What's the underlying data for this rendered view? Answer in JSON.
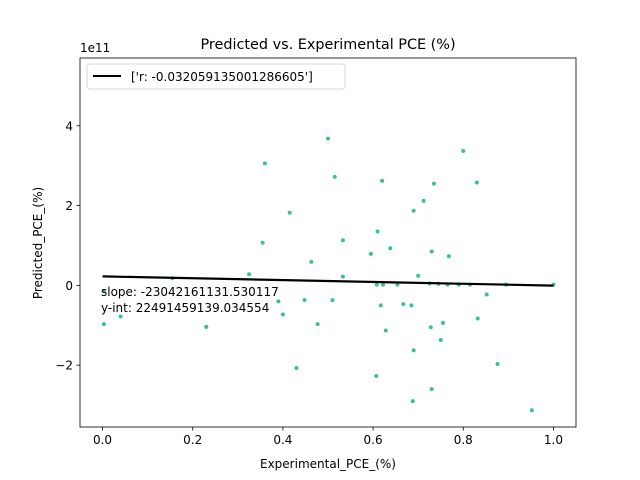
{
  "chart_data": {
    "type": "scatter",
    "title": "Predicted vs. Experimental PCE (%)",
    "xlabel": "Experimental_PCE_(%)",
    "ylabel": "Predicted_PCE_(%)",
    "y_offset_label": "1e11",
    "xlim": [
      -0.05,
      1.05
    ],
    "ylim": [
      -3.55,
      5.7
    ],
    "x_ticks": [
      0.0,
      0.2,
      0.4,
      0.6,
      0.8,
      1.0
    ],
    "x_tick_labels": [
      "0.0",
      "0.2",
      "0.4",
      "0.6",
      "0.8",
      "1.0"
    ],
    "y_ticks": [
      -2,
      0,
      2,
      4
    ],
    "y_tick_labels": [
      "−2",
      "0",
      "2",
      "4"
    ],
    "grid": false,
    "legend": {
      "position": "top-left",
      "entries": [
        "['r: -0.032059135001286605']"
      ]
    },
    "annotations": {
      "slope": "slope: -23042161131.530117",
      "yint": "y-int: 22491459139.034554"
    },
    "colors": {
      "points": "#3cbf99",
      "fit_line": "#000000"
    },
    "fit_line": {
      "x": [
        0.0,
        1.0
      ],
      "y": [
        0.2249,
        -0.0055
      ]
    },
    "series": [
      {
        "x": [
          0.003,
          0.003,
          0.04,
          0.155,
          0.23,
          0.23,
          0.325,
          0.355,
          0.36,
          0.39,
          0.4,
          0.415,
          0.43,
          0.448,
          0.463,
          0.477,
          0.5,
          0.51,
          0.515,
          0.533,
          0.533,
          0.595,
          0.607,
          0.608,
          0.61,
          0.617,
          0.62,
          0.622,
          0.628,
          0.638,
          0.654,
          0.667,
          0.685,
          0.688,
          0.69,
          0.69,
          0.7,
          0.712,
          0.725,
          0.728,
          0.73,
          0.73,
          0.735,
          0.745,
          0.75,
          0.755,
          0.765,
          0.768,
          0.79,
          0.8,
          0.815,
          0.83,
          0.832,
          0.852,
          0.876,
          0.895,
          0.952,
          1.0
        ],
        "y": [
          -0.14,
          -0.97,
          -0.78,
          0.18,
          -1.04,
          -1.04,
          0.28,
          1.07,
          3.06,
          -0.4,
          -0.73,
          1.82,
          -2.07,
          -0.37,
          0.59,
          -0.97,
          3.68,
          -0.37,
          2.72,
          0.22,
          1.13,
          0.79,
          -2.27,
          0.02,
          1.35,
          -0.5,
          2.62,
          0.02,
          -1.13,
          0.93,
          0.02,
          -0.47,
          -0.5,
          -2.9,
          1.87,
          -1.63,
          0.24,
          2.12,
          0.05,
          -1.05,
          0.85,
          -2.6,
          2.55,
          0.04,
          -1.37,
          -0.94,
          0.02,
          0.73,
          0.02,
          3.37,
          0.02,
          2.58,
          -0.83,
          -0.23,
          -1.97,
          0.02,
          -3.13,
          0.02
        ]
      }
    ]
  }
}
